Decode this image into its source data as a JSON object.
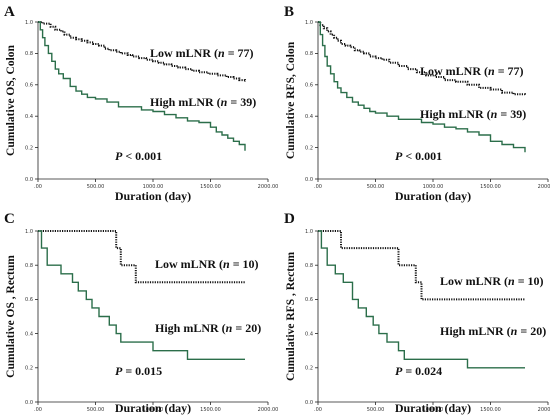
{
  "chart_data": [
    {
      "type": "line",
      "panel": "A",
      "ylabel": "Cumulative OS, Colon",
      "xlabel": "Duration (day)",
      "xlim": [
        0,
        2000
      ],
      "ylim": [
        0,
        1
      ],
      "xticks": [
        ".00",
        "500.00",
        "1000.00",
        "1500.00",
        "2000.00"
      ],
      "yticks": [
        "0.0",
        "0.2",
        "0.4",
        "0.6",
        "0.8",
        "1.0"
      ],
      "p_value": "< 0.001",
      "series": [
        {
          "name": "Low mLNR (n = 77)",
          "style": "dotted",
          "color": "#111111",
          "x": [
            0,
            40,
            110,
            150,
            200,
            230,
            280,
            330,
            380,
            430,
            480,
            530,
            580,
            620,
            680,
            720,
            780,
            820,
            880,
            940,
            1000,
            1050,
            1100,
            1160,
            1220,
            1280,
            1340,
            1400,
            1480,
            1560,
            1640,
            1700,
            1750,
            1800
          ],
          "y": [
            1.0,
            0.99,
            0.97,
            0.95,
            0.94,
            0.92,
            0.9,
            0.89,
            0.88,
            0.87,
            0.86,
            0.85,
            0.83,
            0.82,
            0.81,
            0.8,
            0.79,
            0.78,
            0.77,
            0.76,
            0.75,
            0.74,
            0.73,
            0.72,
            0.71,
            0.7,
            0.69,
            0.68,
            0.67,
            0.66,
            0.65,
            0.64,
            0.63,
            0.62
          ]
        },
        {
          "name": "High mLNR (n = 39)",
          "style": "solid",
          "color": "#2b6e4a",
          "x": [
            0,
            20,
            40,
            60,
            90,
            120,
            150,
            180,
            220,
            280,
            330,
            380,
            430,
            500,
            600,
            700,
            800,
            900,
            1000,
            1100,
            1200,
            1300,
            1400,
            1500,
            1550,
            1600,
            1650,
            1700,
            1750,
            1800
          ],
          "y": [
            1.0,
            0.95,
            0.9,
            0.85,
            0.8,
            0.75,
            0.7,
            0.67,
            0.64,
            0.59,
            0.56,
            0.54,
            0.52,
            0.51,
            0.49,
            0.46,
            0.46,
            0.44,
            0.43,
            0.41,
            0.39,
            0.37,
            0.36,
            0.33,
            0.3,
            0.28,
            0.26,
            0.24,
            0.22,
            0.18
          ]
        }
      ]
    },
    {
      "type": "line",
      "panel": "B",
      "ylabel": "Cumulative RFS, Colon",
      "xlabel": "Duration (day)",
      "xlim": [
        0,
        2000
      ],
      "ylim": [
        0,
        1
      ],
      "xticks": [
        ".00",
        "500.00",
        "1000.00",
        "1500.00",
        "2000.00"
      ],
      "yticks": [
        "0.0",
        "0.2",
        "0.4",
        "0.6",
        "0.8",
        "1.0"
      ],
      "p_value": "< 0.001",
      "series": [
        {
          "name": "Low mLNR (n = 77)",
          "style": "dotted",
          "color": "#111111",
          "x": [
            0,
            20,
            50,
            80,
            110,
            140,
            170,
            200,
            240,
            280,
            320,
            360,
            400,
            450,
            500,
            560,
            620,
            700,
            780,
            860,
            940,
            1020,
            1100,
            1200,
            1300,
            1400,
            1500,
            1600,
            1700,
            1800
          ],
          "y": [
            1.0,
            0.98,
            0.96,
            0.94,
            0.92,
            0.9,
            0.88,
            0.86,
            0.85,
            0.84,
            0.82,
            0.81,
            0.8,
            0.78,
            0.77,
            0.76,
            0.74,
            0.72,
            0.7,
            0.68,
            0.66,
            0.65,
            0.63,
            0.62,
            0.6,
            0.58,
            0.57,
            0.55,
            0.54,
            0.53
          ]
        },
        {
          "name": "High mLNR (n = 39)",
          "style": "solid",
          "color": "#2b6e4a",
          "x": [
            0,
            20,
            40,
            60,
            80,
            110,
            140,
            170,
            200,
            250,
            300,
            350,
            400,
            450,
            500,
            600,
            700,
            800,
            900,
            1000,
            1100,
            1200,
            1300,
            1400,
            1500,
            1600,
            1700,
            1800
          ],
          "y": [
            1.0,
            0.92,
            0.85,
            0.78,
            0.72,
            0.67,
            0.62,
            0.58,
            0.55,
            0.52,
            0.49,
            0.47,
            0.45,
            0.43,
            0.42,
            0.4,
            0.38,
            0.38,
            0.36,
            0.35,
            0.33,
            0.32,
            0.3,
            0.28,
            0.24,
            0.22,
            0.2,
            0.17
          ]
        }
      ]
    },
    {
      "type": "line",
      "panel": "C",
      "ylabel": "Cumulative OS , Rectum",
      "xlabel": "Duration (day)",
      "xlim": [
        0,
        2000
      ],
      "ylim": [
        0,
        1
      ],
      "xticks": [
        ".00",
        "500.00",
        "1000.00",
        "1500.00",
        "2000.00"
      ],
      "yticks": [
        "0.0",
        "0.2",
        "0.4",
        "0.6",
        "0.8",
        "1.0"
      ],
      "p_value": "= 0.015",
      "series": [
        {
          "name": "Low mLNR (n = 10)",
          "style": "dotted",
          "color": "#111111",
          "x": [
            0,
            680,
            720,
            800,
            850,
            1800
          ],
          "y": [
            1.0,
            0.9,
            0.8,
            0.8,
            0.7,
            0.7
          ]
        },
        {
          "name": "High mLNR (n = 20)",
          "style": "solid",
          "color": "#2b6e4a",
          "x": [
            0,
            30,
            80,
            200,
            300,
            350,
            420,
            470,
            530,
            620,
            680,
            720,
            850,
            1000,
            1100,
            1300,
            1800
          ],
          "y": [
            1.0,
            0.9,
            0.8,
            0.75,
            0.7,
            0.65,
            0.6,
            0.55,
            0.5,
            0.45,
            0.4,
            0.35,
            0.35,
            0.3,
            0.3,
            0.25,
            0.25
          ]
        }
      ]
    },
    {
      "type": "line",
      "panel": "D",
      "ylabel": "Cumulative RFS , Rectum",
      "xlabel": "Duration (day)",
      "xlim": [
        0,
        2000
      ],
      "ylim": [
        0,
        1
      ],
      "xticks": [
        ".00",
        "500.00",
        "1000.00",
        "1500.00",
        "2000.00"
      ],
      "yticks": [
        "0.0",
        "0.2",
        "0.4",
        "0.6",
        "0.8",
        "1.0"
      ],
      "p_value": "= 0.024",
      "series": [
        {
          "name": "Low mLNR (n = 10)",
          "style": "dotted",
          "color": "#111111",
          "x": [
            0,
            150,
            200,
            650,
            700,
            850,
            900,
            1800
          ],
          "y": [
            1.0,
            1.0,
            0.9,
            0.9,
            0.8,
            0.7,
            0.6,
            0.6
          ]
        },
        {
          "name": "High mLNR (n = 20)",
          "style": "solid",
          "color": "#2b6e4a",
          "x": [
            0,
            30,
            80,
            150,
            220,
            300,
            350,
            420,
            480,
            530,
            600,
            700,
            750,
            1300,
            1800
          ],
          "y": [
            1.0,
            0.9,
            0.8,
            0.75,
            0.7,
            0.6,
            0.55,
            0.5,
            0.45,
            0.4,
            0.35,
            0.3,
            0.25,
            0.2,
            0.2
          ]
        }
      ]
    }
  ]
}
